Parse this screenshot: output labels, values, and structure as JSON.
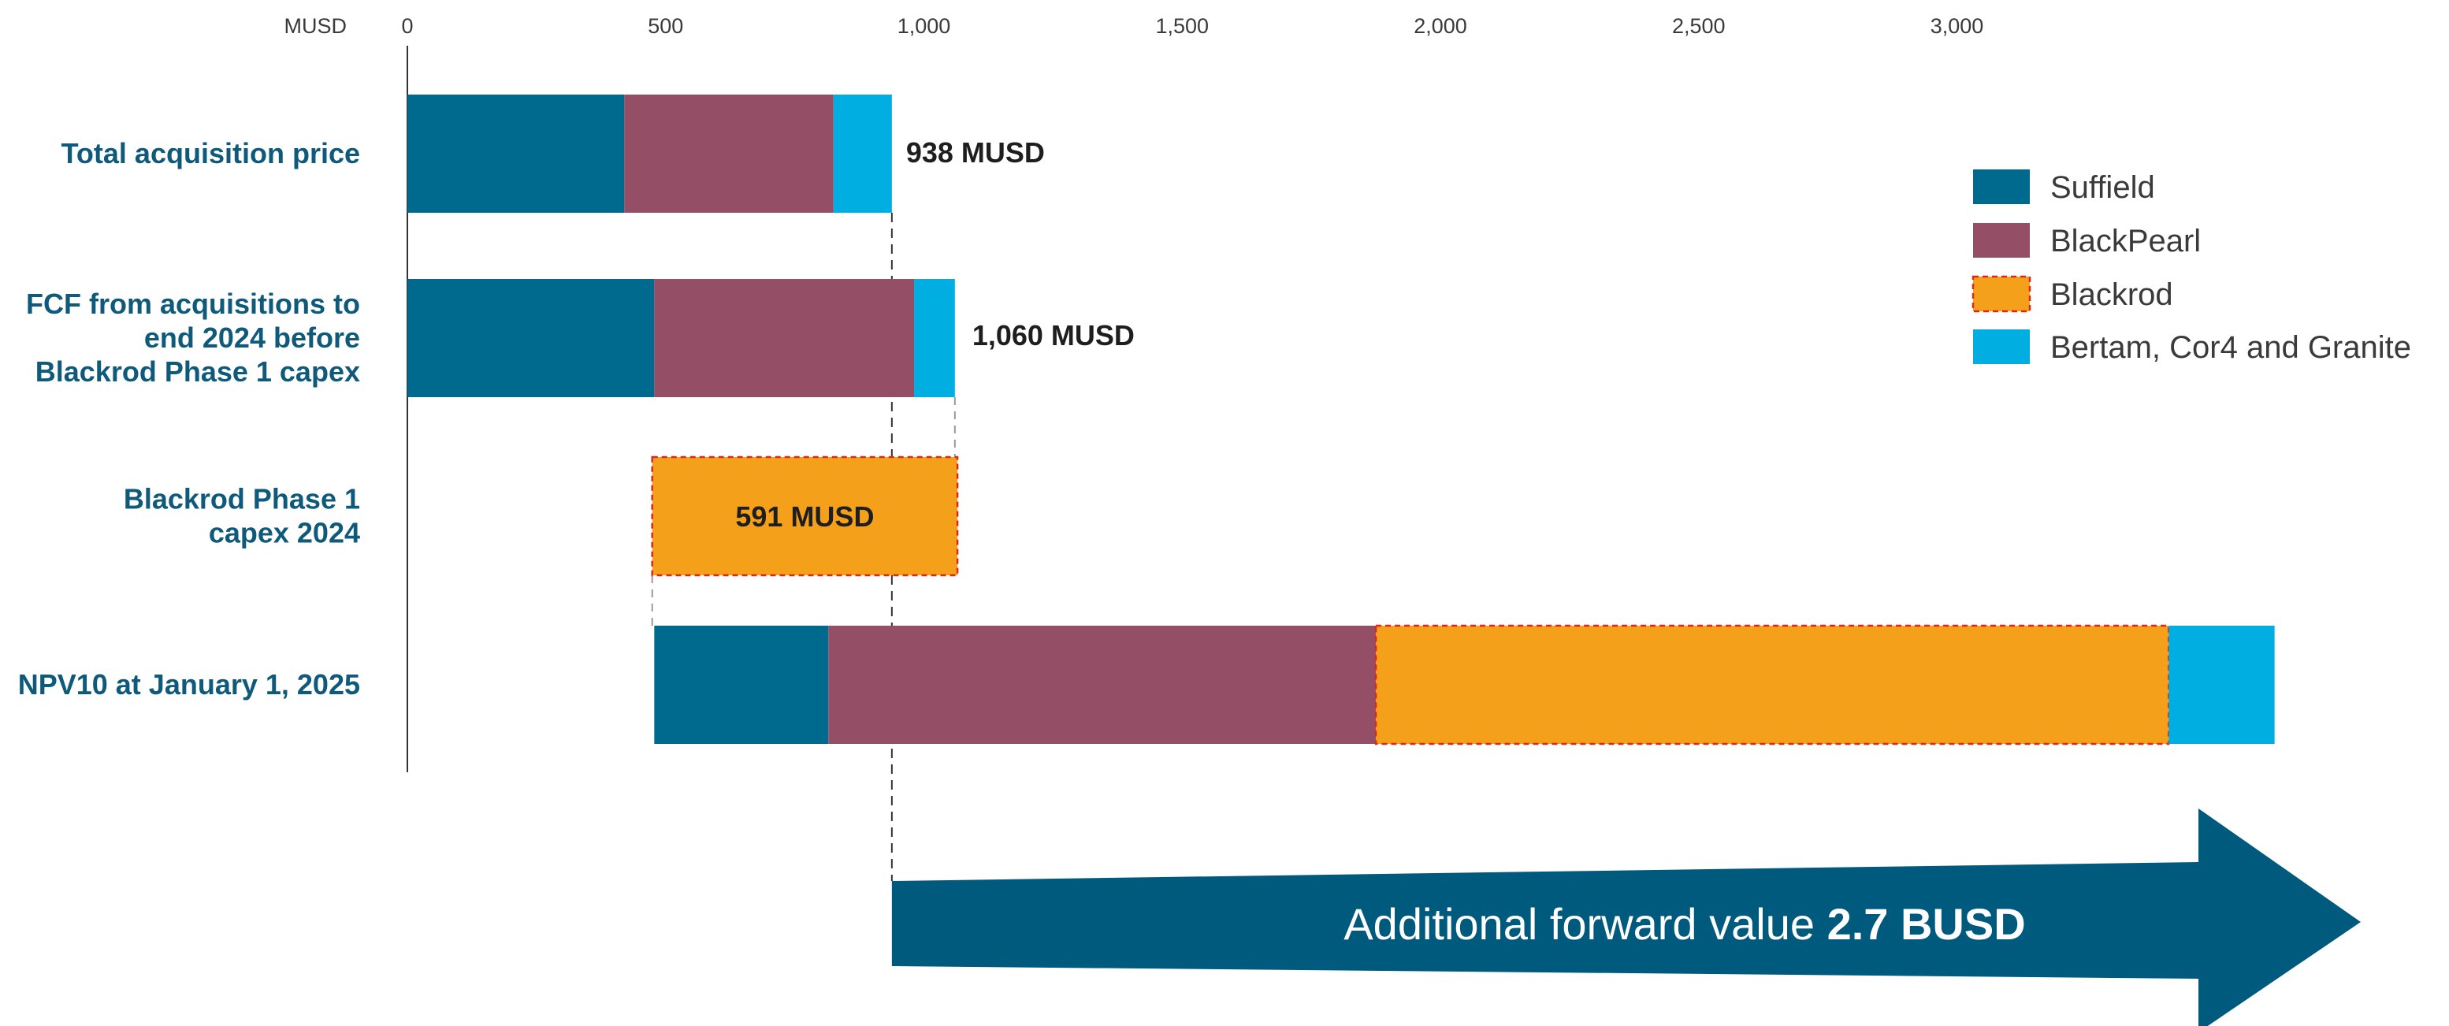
{
  "chart_data": {
    "type": "bar",
    "orientation": "horizontal",
    "stacked": true,
    "unit": "MUSD",
    "xlim": [
      0,
      3600
    ],
    "xticks": [
      "0",
      "500",
      "1,000",
      "1,500",
      "2,000",
      "2,500",
      "3,000"
    ],
    "categories": [
      "Total acquisition price",
      "FCF from acquisitions to end 2024 before Blackrod Phase 1 capex",
      "Blackrod Phase 1 capex 2024",
      "NPV10 at January 1, 2025"
    ],
    "category_lines": [
      [
        "Total acquisition price"
      ],
      [
        "FCF from acquisitions to",
        "end 2024 before",
        "Blackrod Phase 1 capex"
      ],
      [
        "Blackrod Phase 1",
        "capex 2024"
      ],
      [
        "NPV10 at January 1, 2025"
      ]
    ],
    "series": [
      {
        "name": "Suffield",
        "color": "#006a8e",
        "segments": [
          [
            0,
            420
          ],
          [
            0,
            478
          ],
          null,
          [
            478,
            815
          ]
        ]
      },
      {
        "name": "BlackPearl",
        "color": "#944f66",
        "segments": [
          [
            420,
            825
          ],
          [
            478,
            981
          ],
          null,
          [
            815,
            1875
          ]
        ]
      },
      {
        "name": "Blackrod",
        "color": "#f5a01a",
        "dashed": true,
        "segments": [
          null,
          null,
          [
            474,
            1065
          ],
          [
            1875,
            3410
          ]
        ]
      },
      {
        "name": "Bertam, Cor4 and Granite",
        "color": "#00aee2",
        "segments": [
          [
            825,
            938
          ],
          [
            981,
            1060
          ],
          null,
          [
            3410,
            3615
          ]
        ]
      }
    ],
    "totals": [
      938,
      1060,
      591,
      null
    ],
    "data_labels": [
      "938 MUSD",
      "1,060 MUSD",
      "591 MUSD"
    ],
    "arrow": {
      "from": 938,
      "to": 3600,
      "text": "Additional forward value ",
      "bold_text": "2.7 BUSD",
      "color": "#005a7d"
    },
    "legend_position": "right"
  }
}
